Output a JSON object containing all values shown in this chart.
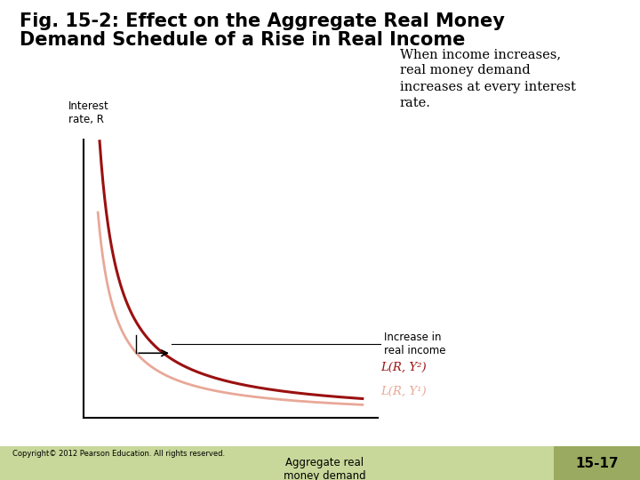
{
  "title_line1": "Fig. 15-2: Effect on the Aggregate Real Money",
  "title_line2": "Demand Schedule of a Rise in Real Income",
  "title_fontsize": 15,
  "title_fontweight": "bold",
  "background_color": "#c8d89a",
  "white_bg_color": "#ffffff",
  "plot_bg_color": "#ffffff",
  "ylabel": "Interest\nrate, R",
  "xlabel": "Aggregate real\nmoney demand",
  "curve1_color": "#e8a898",
  "curve2_color": "#9b1010",
  "curve1_label": "L(R, Y¹)",
  "curve2_label": "L(R, Y²)",
  "annotation_text": "Increase in\nreal income",
  "note_text": "When income increases,\nreal money demand\nincreases at every interest\nrate.",
  "note_fontsize": 10.5,
  "copyright_text": "Copyright© 2012 Pearson Education. All rights reserved.",
  "page_label": "15-17",
  "page_bg": "#9aaa60"
}
